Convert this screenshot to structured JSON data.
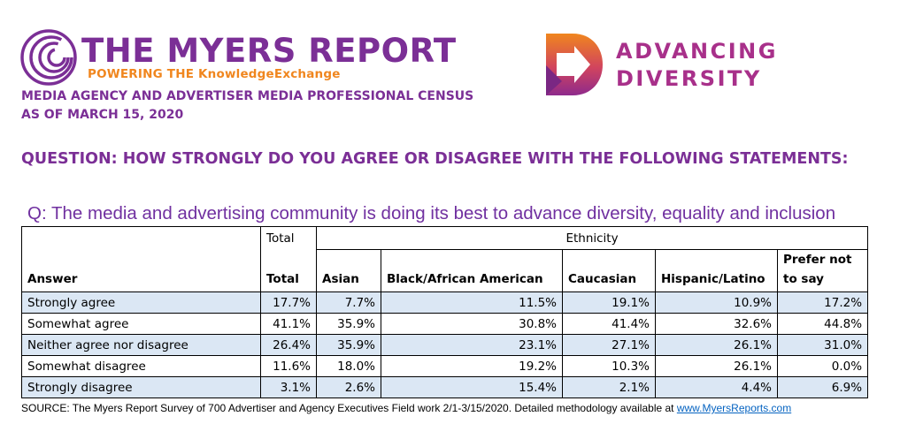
{
  "header": {
    "brand_title": "THE MYERS REPORT",
    "brand_tagline": "POWERING THE KnowledgeExchange",
    "census_line1": "MEDIA AGENCY AND ADVERTISER MEDIA PROFESSIONAL CENSUS",
    "census_line2": "AS OF MARCH 15, 2020",
    "partner_line1": "ADVANCING",
    "partner_line2": "DIVERSITY"
  },
  "colors": {
    "purple": "#7b2f96",
    "orange": "#f0861e",
    "magenta": "#a8308a",
    "row_shade": "#dbe7f4",
    "link": "#0563c1"
  },
  "question": "QUESTION: HOW STRONGLY DO YOU AGREE OR DISAGREE WITH THE FOLLOWING STATEMENTS:",
  "statement": "Q: The media and advertising community is doing its best to advance diversity, equality and inclusion",
  "table": {
    "group_total": "Total",
    "group_ethnicity": "Ethnicity",
    "columns": [
      "Answer",
      "Total",
      "Asian",
      "Black/African American",
      "Caucasian",
      "Hispanic/Latino",
      "Prefer not to say"
    ],
    "rows": [
      [
        "Strongly agree",
        "17.7%",
        "7.7%",
        "11.5%",
        "19.1%",
        "10.9%",
        "17.2%"
      ],
      [
        "Somewhat agree",
        "41.1%",
        "35.9%",
        "30.8%",
        "41.4%",
        "32.6%",
        "44.8%"
      ],
      [
        "Neither agree nor disagree",
        "26.4%",
        "35.9%",
        "23.1%",
        "27.1%",
        "26.1%",
        "31.0%"
      ],
      [
        "Somewhat disagree",
        "11.6%",
        "18.0%",
        "19.2%",
        "10.3%",
        "26.1%",
        "0.0%"
      ],
      [
        "Strongly disagree",
        "3.1%",
        "2.6%",
        "15.4%",
        "2.1%",
        "4.4%",
        "6.9%"
      ]
    ]
  },
  "source": {
    "text": "SOURCE: The Myers Report Survey of 700 Advertiser and Agency Executives Field work 2/1-3/15/2020. Detailed methodology available at ",
    "link_text": "www.MyersReports.com"
  }
}
